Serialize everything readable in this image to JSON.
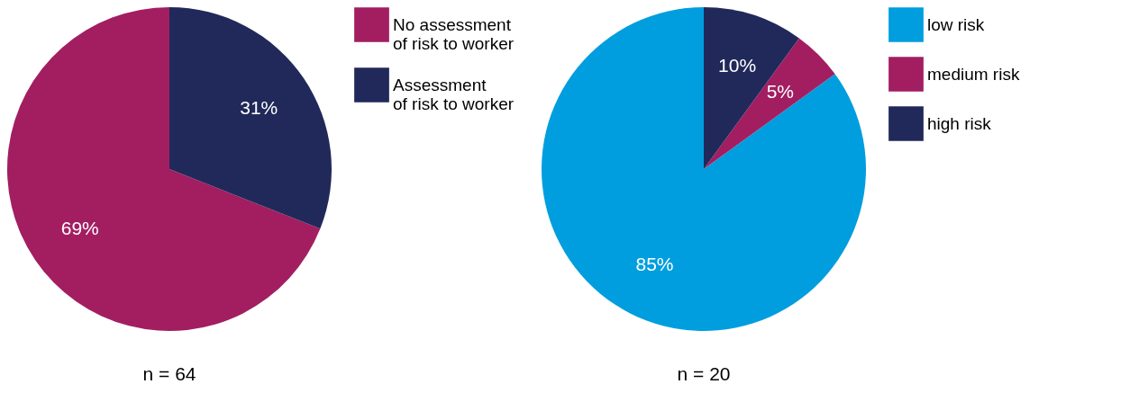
{
  "chart_data": [
    {
      "type": "pie",
      "title": "n = 64",
      "categories": [
        "No assessment of risk to worker",
        "Assessment of risk to worker"
      ],
      "values": [
        69,
        31
      ],
      "colors": [
        "#a21e61",
        "#20295a"
      ],
      "value_labels": [
        "69%",
        "31%"
      ],
      "legend": "right"
    },
    {
      "type": "pie",
      "title": "n = 20",
      "categories": [
        "low risk",
        "medium risk",
        "high risk"
      ],
      "values": [
        85,
        5,
        10
      ],
      "colors": [
        "#009ede",
        "#a21e61",
        "#20295a"
      ],
      "value_labels": [
        "85%",
        "5%",
        "10%"
      ],
      "legend": "right"
    }
  ]
}
